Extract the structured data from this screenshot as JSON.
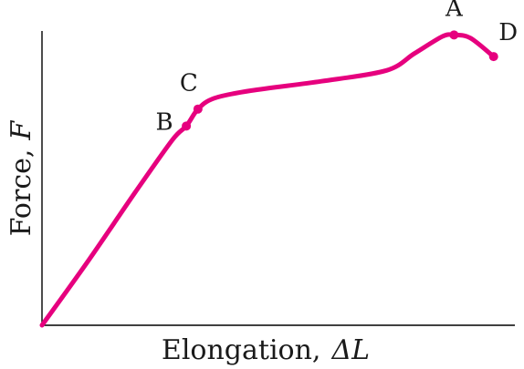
{
  "chart_data": {
    "type": "line",
    "title": "",
    "xlabel_text": "Elongation,",
    "xlabel_symbol": "ΔL",
    "ylabel_text": "Force,",
    "ylabel_symbol": "F",
    "xlim": [
      0,
      100
    ],
    "ylim": [
      0,
      100
    ],
    "grid": false,
    "ticks": false,
    "curve_color": "#e6007e",
    "series": [
      {
        "x": [
          0,
          10,
          20,
          28,
          31,
          33.5,
          37,
          45,
          60,
          74,
          80,
          86,
          88.5,
          92,
          97
        ],
        "y": [
          0,
          21,
          43,
          60,
          64.5,
          70,
          73.5,
          76,
          79,
          82.5,
          88,
          93.5,
          94,
          93,
          87
        ]
      }
    ],
    "points": [
      {
        "label": "B",
        "x": 31,
        "y": 64.5
      },
      {
        "label": "C",
        "x": 33.5,
        "y": 70
      },
      {
        "label": "A",
        "x": 88.5,
        "y": 94
      },
      {
        "label": "D",
        "x": 97,
        "y": 87
      }
    ]
  }
}
